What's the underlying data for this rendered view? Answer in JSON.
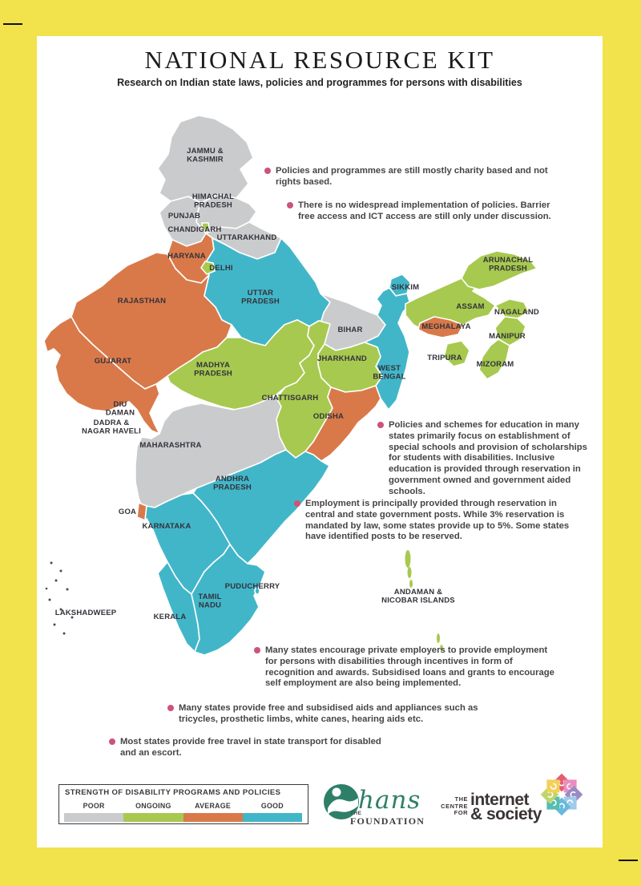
{
  "page": {
    "title": "NATIONAL RESOURCE KIT",
    "subtitle": "Research on Indian state laws, policies and programmes for persons with disabilities"
  },
  "notes": [
    {
      "text": "Policies and programmes are still mostly charity based and not rights based."
    },
    {
      "text": "There is no widespread implementation of policies. Barrier free access and ICT access are still only under discussion."
    },
    {
      "text": "Policies and schemes for education in many states primarily focus on establishment of special schools and provision of scholarships for students with disabilities. Inclusive education is provided through reservation in government owned and government aided schools."
    },
    {
      "text": "Employment is principally provided through reservation in central and state government posts. While 3% reservation is mandated by law, some states provide up to 5%. Some states have identified posts to be reserved."
    },
    {
      "text": "Many states encourage private employers to provide employment for persons with disabilities through incentives in form of recognition and awards. Subsidised loans and grants to encourage self employment are also being implemented."
    },
    {
      "text": "Many states provide free and subsidised aids and appliances such as tricycles, prosthetic limbs, white canes, hearing aids etc."
    },
    {
      "text": "Most states provide free travel in state transport for disabled and an escort."
    }
  ],
  "legend": {
    "title": "STRENGTH OF DISABILITY PROGRAMS AND POLICIES",
    "items": [
      {
        "label": "POOR",
        "status": "poor",
        "color": "#cacbcd"
      },
      {
        "label": "ONGOING",
        "status": "ongoing",
        "color": "#a7c94f"
      },
      {
        "label": "AVERAGE",
        "status": "average",
        "color": "#d9794a"
      },
      {
        "label": "GOOD",
        "status": "good",
        "color": "#42b6c9"
      }
    ]
  },
  "map": {
    "states": [
      {
        "id": "jammu-kashmir",
        "label": "JAMMU &\nKASHMIR",
        "status": "poor"
      },
      {
        "id": "himachal-pradesh",
        "label": "HIMACHAL\nPRADESH",
        "status": "poor"
      },
      {
        "id": "punjab",
        "label": "PUNJAB",
        "status": "poor"
      },
      {
        "id": "chandigarh",
        "label": "CHANDIGARH",
        "status": "ongoing"
      },
      {
        "id": "uttarakhand",
        "label": "UTTARAKHAND",
        "status": "poor"
      },
      {
        "id": "haryana",
        "label": "HARYANA",
        "status": "average"
      },
      {
        "id": "delhi",
        "label": "DELHI",
        "status": "ongoing"
      },
      {
        "id": "rajasthan",
        "label": "RAJASTHAN",
        "status": "average"
      },
      {
        "id": "gujarat",
        "label": "GUJARAT",
        "status": "average"
      },
      {
        "id": "uttar-pradesh",
        "label": "UTTAR\nPRADESH",
        "status": "good"
      },
      {
        "id": "bihar",
        "label": "BIHAR",
        "status": "poor"
      },
      {
        "id": "sikkim",
        "label": "SIKKIM",
        "status": "good"
      },
      {
        "id": "west-bengal",
        "label": "WEST\nBENGAL",
        "status": "good"
      },
      {
        "id": "jharkhand",
        "label": "JHARKHAND",
        "status": "ongoing"
      },
      {
        "id": "assam",
        "label": "ASSAM",
        "status": "ongoing"
      },
      {
        "id": "arunachal-pradesh",
        "label": "ARUNACHAL\nPRADESH",
        "status": "ongoing"
      },
      {
        "id": "nagaland",
        "label": "NAGALAND",
        "status": "ongoing"
      },
      {
        "id": "meghalaya",
        "label": "MEGHALAYA",
        "status": "average"
      },
      {
        "id": "manipur",
        "label": "MANIPUR",
        "status": "ongoing"
      },
      {
        "id": "tripura",
        "label": "TRIPURA",
        "status": "ongoing"
      },
      {
        "id": "mizoram",
        "label": "MIZORAM",
        "status": "ongoing"
      },
      {
        "id": "madhya-pradesh",
        "label": "MADHYA\nPRADESH",
        "status": "ongoing"
      },
      {
        "id": "chattisgarh",
        "label": "CHATTISGARH",
        "status": "ongoing"
      },
      {
        "id": "odisha",
        "label": "ODISHA",
        "status": "average"
      },
      {
        "id": "maharashtra",
        "label": "MAHARASHTRA",
        "status": "poor"
      },
      {
        "id": "diu-daman",
        "label": "DIU\nDAMAN",
        "status": "none"
      },
      {
        "id": "dadra-nagar-haveli",
        "label": "DADRA &\nNAGAR HAVELI",
        "status": "none"
      },
      {
        "id": "goa",
        "label": "GOA",
        "status": "average"
      },
      {
        "id": "andhra-pradesh",
        "label": "ANDHRA\nPRADESH",
        "status": "good"
      },
      {
        "id": "karnataka",
        "label": "KARNATAKA",
        "status": "good"
      },
      {
        "id": "kerala",
        "label": "KERALA",
        "status": "good"
      },
      {
        "id": "tamil-nadu",
        "label": "TAMIL\nNADU",
        "status": "good"
      },
      {
        "id": "puducherry",
        "label": "PUDUCHERRY",
        "status": "good"
      },
      {
        "id": "lakshadweep",
        "label": "LAKSHADWEEP",
        "status": "none"
      },
      {
        "id": "andaman-nicobar",
        "label": "ANDAMAN &\nNICOBAR ISLANDS",
        "status": "ongoing"
      }
    ]
  },
  "logos": {
    "hans": {
      "the": "THE",
      "name": "hans",
      "foundation": "FOUNDATION"
    },
    "cis": {
      "the": "THE",
      "centre": "CENTRE",
      "for": "FOR",
      "word1": "internet",
      "word2": "& society"
    }
  }
}
